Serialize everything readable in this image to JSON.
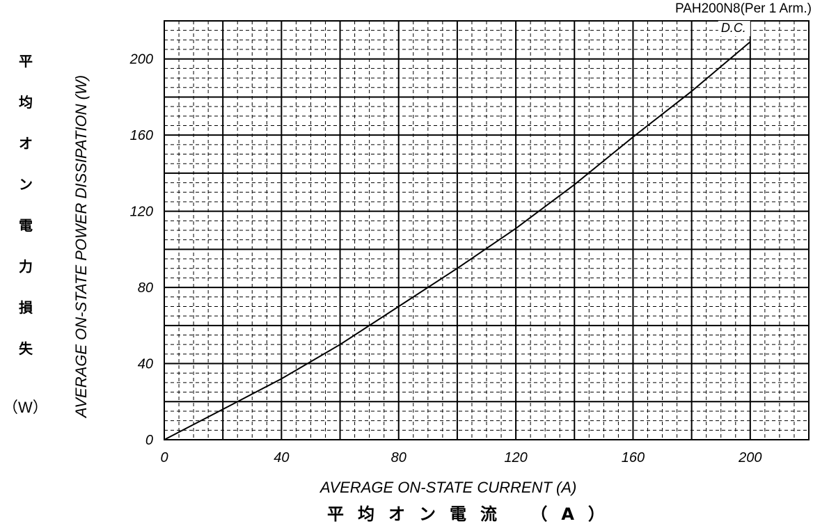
{
  "part_title": "PAH200N8(Per 1 Arm.)",
  "y_label": "AVERAGE ON-STATE POWER DISSIPATION (W)",
  "y_label_jp": [
    "平",
    "均",
    "オ",
    "ン",
    "電",
    "力",
    "損",
    "失"
  ],
  "y_label_jp_unit": "（W）",
  "x_label": "AVERAGE ON-STATE CURRENT (A)",
  "x_label_jp": "平均オン電流 （A）",
  "chart_data": {
    "type": "line",
    "x_ticks": [
      "0",
      "40",
      "80",
      "120",
      "160",
      "200"
    ],
    "y_ticks": [
      "0",
      "40",
      "80",
      "120",
      "160",
      "200"
    ],
    "xlim": [
      0,
      220
    ],
    "ylim": [
      0,
      220
    ],
    "grid": true,
    "series": [
      {
        "name": "D.C.",
        "color": "#000000",
        "x": [
          0,
          10,
          20,
          40,
          60,
          80,
          100,
          120,
          140,
          160,
          180,
          200
        ],
        "y": [
          0,
          8,
          16,
          32,
          50,
          70,
          90,
          111,
          134,
          159,
          183,
          209
        ]
      }
    ]
  }
}
